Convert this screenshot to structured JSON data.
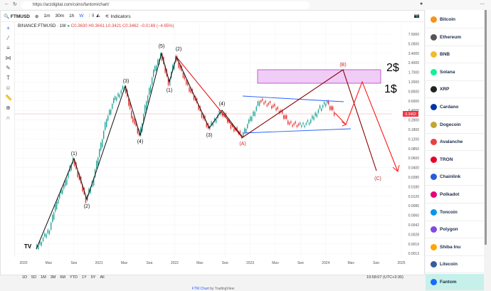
{
  "browser": {
    "url": "https://arzdigital.com/coins/fantom/chart/"
  },
  "toolbar": {
    "symbol": "FTMUSD",
    "intervals": [
      "1m",
      "30m",
      "1h",
      "W"
    ],
    "indicators": "Indicators"
  },
  "legend": {
    "title": "BINANCE:FTMUSD · 1W",
    "open": "O0.3630",
    "high": "H0.3661",
    "low": "L0.3421",
    "close": "C0.3462",
    "change": "−0.0169 (−4.65%)"
  },
  "price_axis": [
    "7.5000",
    "5.0000",
    "3.4000",
    "2.4000",
    "1.7000",
    "1.2000",
    "0.8500",
    "0.6000",
    "0.4000",
    "0.2800",
    "0.1800",
    "0.1200",
    "0.0850",
    "0.0600",
    "0.0400",
    "0.0280",
    "0.0180",
    "0.0120",
    "0.0085",
    "0.0060",
    "0.0042",
    "0.0028",
    "0.0019",
    "0.0013"
  ],
  "current_price": "0.3462",
  "time_axis": [
    "2020",
    "May",
    "Sep",
    "2021",
    "May",
    "Sep",
    "2022",
    "May",
    "Sep",
    "2023",
    "May",
    "Sep",
    "2024",
    "May",
    "Sep",
    "2025"
  ],
  "wave_labels": {
    "w1": "(1)",
    "w2": "(2)",
    "w3": "(3)",
    "w4": "(4)",
    "w5": "(5)",
    "c1": "(1)",
    "c2": "(2)",
    "c3": "(3)",
    "c4": "(4)",
    "A": "(A)",
    "B": "(B)",
    "C": "(C)"
  },
  "targets": {
    "high": "2$",
    "low": "1$"
  },
  "ranges": [
    "1D",
    "5D",
    "1M",
    "3M",
    "6M",
    "YTD",
    "1Y",
    "5Y",
    "All"
  ],
  "clock": "19:58:07 (UTC+3:30)",
  "credit": {
    "link": "FTM Chart",
    "by": " by TradingView"
  },
  "coins": [
    {
      "name": "Bitcoin",
      "color": "#f7931a"
    },
    {
      "name": "Ethereum",
      "color": "#555"
    },
    {
      "name": "BNB",
      "color": "#f3ba2f"
    },
    {
      "name": "Solana",
      "color": "#14f195"
    },
    {
      "name": "XRP",
      "color": "#222"
    },
    {
      "name": "Cardano",
      "color": "#0033ad"
    },
    {
      "name": "Dogecoin",
      "color": "#c2a633"
    },
    {
      "name": "Avalanche",
      "color": "#e84142"
    },
    {
      "name": "TRON",
      "color": "#eb0029"
    },
    {
      "name": "Chainlink",
      "color": "#2a5ada"
    },
    {
      "name": "Polkadot",
      "color": "#e6007a"
    },
    {
      "name": "Toncoin",
      "color": "#0098ea"
    },
    {
      "name": "Polygon",
      "color": "#8247e5"
    },
    {
      "name": "Shiba Inu",
      "color": "#ffa409"
    },
    {
      "name": "Litecoin",
      "color": "#345d9d"
    },
    {
      "name": "Fantom",
      "color": "#1969ff"
    }
  ],
  "colors": {
    "up": "#26a69a",
    "down": "#e53935",
    "wave": "#111",
    "corr": "#8b0000",
    "arrow": "#ff1a1a",
    "channel": "#2962ff",
    "zone": "#e9b8f2"
  }
}
